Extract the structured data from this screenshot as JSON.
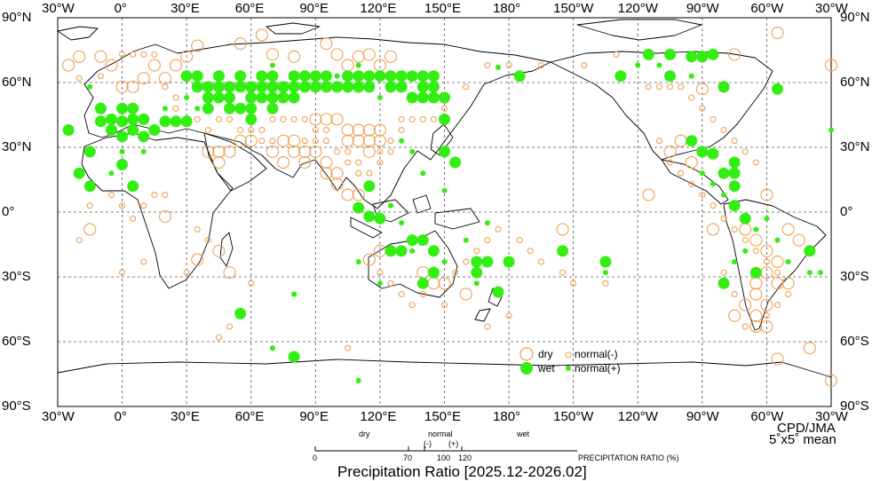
{
  "lon_labels": [
    "30°W",
    "0°",
    "30°E",
    "60°E",
    "90°E",
    "120°E",
    "150°E",
    "180°",
    "150°W",
    "120°W",
    "90°W",
    "60°W",
    "30°W"
  ],
  "lat_labels": [
    "90°N",
    "60°N",
    "30°N",
    "0°",
    "30°S",
    "60°S",
    "90°S"
  ],
  "credit": "CPD/JMA",
  "resolution": "5˚x5˚ mean",
  "legend": {
    "dry": "dry",
    "wet": "wet",
    "normal_minus": "normal(-)",
    "normal_plus": "normal(+)"
  },
  "scale": {
    "dry": "dry",
    "normal": "normal",
    "minus": "(-)",
    "plus": "(+)",
    "wet": "wet",
    "ticks": [
      "0",
      "70",
      "100",
      "120"
    ],
    "label": "PRECIPITATION RATIO  (%)"
  },
  "title": "Precipitation Ratio [2025.12-2026.02]",
  "colors": {
    "wet": "#33ee11",
    "dry": "#f0a050",
    "land": "#000000",
    "grid": "#555555"
  },
  "map_data": {
    "wet": [
      [
        -25,
        38
      ],
      [
        -20,
        18
      ],
      [
        -15,
        12
      ],
      [
        -15,
        28
      ],
      [
        -10,
        42
      ],
      [
        -10,
        48
      ],
      [
        -5,
        38
      ],
      [
        -5,
        43
      ],
      [
        0,
        22
      ],
      [
        0,
        35
      ],
      [
        0,
        42
      ],
      [
        0,
        48
      ],
      [
        5,
        12
      ],
      [
        5,
        38
      ],
      [
        5,
        43
      ],
      [
        5,
        48
      ],
      [
        10,
        43
      ],
      [
        10,
        35
      ],
      [
        15,
        38
      ],
      [
        20,
        42
      ],
      [
        25,
        42
      ],
      [
        30,
        42
      ],
      [
        30,
        63
      ],
      [
        35,
        63
      ],
      [
        35,
        58
      ],
      [
        40,
        58
      ],
      [
        40,
        53
      ],
      [
        40,
        48
      ],
      [
        45,
        63
      ],
      [
        45,
        58
      ],
      [
        45,
        53
      ],
      [
        50,
        58
      ],
      [
        50,
        53
      ],
      [
        50,
        48
      ],
      [
        55,
        63
      ],
      [
        55,
        58
      ],
      [
        55,
        48
      ],
      [
        60,
        58
      ],
      [
        60,
        53
      ],
      [
        60,
        48
      ],
      [
        60,
        43
      ],
      [
        65,
        63
      ],
      [
        65,
        58
      ],
      [
        65,
        53
      ],
      [
        70,
        63
      ],
      [
        70,
        58
      ],
      [
        70,
        53
      ],
      [
        70,
        48
      ],
      [
        75,
        58
      ],
      [
        75,
        53
      ],
      [
        80,
        63
      ],
      [
        80,
        58
      ],
      [
        80,
        53
      ],
      [
        85,
        63
      ],
      [
        85,
        58
      ],
      [
        90,
        63
      ],
      [
        90,
        58
      ],
      [
        95,
        63
      ],
      [
        95,
        58
      ],
      [
        100,
        58
      ],
      [
        105,
        63
      ],
      [
        105,
        58
      ],
      [
        110,
        63
      ],
      [
        110,
        58
      ],
      [
        115,
        63
      ],
      [
        115,
        58
      ],
      [
        120,
        63
      ],
      [
        125,
        63
      ],
      [
        125,
        58
      ],
      [
        130,
        63
      ],
      [
        130,
        58
      ],
      [
        135,
        63
      ],
      [
        135,
        53
      ],
      [
        140,
        63
      ],
      [
        140,
        58
      ],
      [
        140,
        53
      ],
      [
        145,
        63
      ],
      [
        145,
        58
      ],
      [
        145,
        53
      ],
      [
        150,
        53
      ],
      [
        150,
        43
      ],
      [
        150,
        28
      ],
      [
        155,
        23
      ],
      [
        115,
        12
      ],
      [
        110,
        2
      ],
      [
        115,
        -2
      ],
      [
        120,
        -3
      ],
      [
        125,
        -18
      ],
      [
        130,
        -18
      ],
      [
        135,
        -13
      ],
      [
        140,
        -13
      ],
      [
        145,
        -18
      ],
      [
        145,
        -28
      ],
      [
        140,
        -33
      ],
      [
        165,
        -28
      ],
      [
        165,
        -23
      ],
      [
        170,
        -23
      ],
      [
        180,
        -23
      ],
      [
        185,
        63
      ],
      [
        205,
        -18
      ],
      [
        225,
        -23
      ],
      [
        232,
        63
      ],
      [
        245,
        73
      ],
      [
        255,
        73
      ],
      [
        255,
        63
      ],
      [
        265,
        72
      ],
      [
        270,
        72
      ],
      [
        275,
        73
      ],
      [
        280,
        58
      ],
      [
        280,
        -33
      ],
      [
        285,
        12
      ],
      [
        285,
        23
      ],
      [
        265,
        33
      ],
      [
        270,
        28
      ],
      [
        275,
        27
      ],
      [
        280,
        18
      ],
      [
        285,
        18
      ],
      [
        285,
        3
      ],
      [
        290,
        -3
      ],
      [
        295,
        -28
      ],
      [
        305,
        57
      ],
      [
        320,
        -18
      ],
      [
        55,
        -47
      ],
      [
        80,
        -67
      ],
      [
        175,
        -37
      ]
    ],
    "dry": [
      [
        -25,
        68
      ],
      [
        -20,
        72
      ],
      [
        -10,
        72
      ],
      [
        -5,
        68
      ],
      [
        0,
        58
      ],
      [
        5,
        58
      ],
      [
        10,
        62
      ],
      [
        15,
        68
      ],
      [
        20,
        62
      ],
      [
        25,
        68
      ],
      [
        30,
        72
      ],
      [
        35,
        77
      ],
      [
        55,
        78
      ],
      [
        65,
        82
      ],
      [
        70,
        73
      ],
      [
        80,
        72
      ],
      [
        95,
        78
      ],
      [
        100,
        73
      ],
      [
        105,
        68
      ],
      [
        110,
        72
      ],
      [
        115,
        73
      ],
      [
        120,
        68
      ],
      [
        125,
        72
      ],
      [
        90,
        43
      ],
      [
        95,
        43
      ],
      [
        100,
        43
      ],
      [
        105,
        38
      ],
      [
        105,
        33
      ],
      [
        110,
        38
      ],
      [
        110,
        33
      ],
      [
        115,
        38
      ],
      [
        115,
        33
      ],
      [
        115,
        28
      ],
      [
        120,
        38
      ],
      [
        120,
        33
      ],
      [
        80,
        33
      ],
      [
        75,
        33
      ],
      [
        70,
        28
      ],
      [
        75,
        23
      ],
      [
        80,
        28
      ],
      [
        85,
        28
      ],
      [
        85,
        23
      ],
      [
        90,
        28
      ],
      [
        95,
        23
      ],
      [
        100,
        18
      ],
      [
        95,
        18
      ],
      [
        100,
        13
      ],
      [
        105,
        8
      ],
      [
        110,
        8
      ],
      [
        40,
        28
      ],
      [
        45,
        23
      ],
      [
        45,
        28
      ],
      [
        50,
        28
      ],
      [
        55,
        33
      ],
      [
        60,
        33
      ],
      [
        20,
        -2
      ],
      [
        35,
        -22
      ],
      [
        45,
        -18
      ],
      [
        50,
        -28
      ],
      [
        115,
        -22
      ],
      [
        120,
        -18
      ],
      [
        140,
        -28
      ],
      [
        145,
        -33
      ],
      [
        150,
        -33
      ],
      [
        160,
        -38
      ],
      [
        -15,
        -8
      ],
      [
        205,
        -8
      ],
      [
        245,
        8
      ],
      [
        255,
        28
      ],
      [
        260,
        33
      ],
      [
        265,
        23
      ],
      [
        275,
        -8
      ],
      [
        290,
        -8
      ],
      [
        295,
        -13
      ],
      [
        300,
        -18
      ],
      [
        300,
        -28
      ],
      [
        305,
        -23
      ],
      [
        305,
        -33
      ],
      [
        310,
        -33
      ],
      [
        300,
        -43
      ],
      [
        295,
        -48
      ],
      [
        295,
        -53
      ],
      [
        300,
        -53
      ],
      [
        295,
        -38
      ],
      [
        290,
        -43
      ],
      [
        295,
        -33
      ],
      [
        285,
        -48
      ],
      [
        300,
        8
      ],
      [
        310,
        -8
      ],
      [
        315,
        -13
      ],
      [
        305,
        -68
      ],
      [
        320,
        -63
      ],
      [
        330,
        -78
      ],
      [
        330,
        68
      ],
      [
        270,
        57
      ],
      [
        285,
        73
      ],
      [
        305,
        83
      ]
    ],
    "norm_plus": [
      [
        -15,
        58
      ],
      [
        -10,
        48
      ],
      [
        -5,
        18
      ],
      [
        0,
        28
      ],
      [
        10,
        28
      ],
      [
        20,
        48
      ],
      [
        30,
        53
      ],
      [
        35,
        48
      ],
      [
        70,
        68
      ],
      [
        100,
        63
      ],
      [
        110,
        68
      ],
      [
        120,
        53
      ],
      [
        130,
        33
      ],
      [
        135,
        28
      ],
      [
        140,
        18
      ],
      [
        150,
        10
      ],
      [
        125,
        3
      ],
      [
        130,
        -5
      ],
      [
        110,
        -23
      ],
      [
        120,
        -33
      ],
      [
        135,
        -18
      ],
      [
        150,
        -23
      ],
      [
        165,
        -33
      ],
      [
        160,
        -13
      ],
      [
        170,
        -5
      ],
      [
        175,
        67
      ],
      [
        225,
        -28
      ],
      [
        240,
        68
      ],
      [
        250,
        68
      ],
      [
        265,
        63
      ],
      [
        270,
        18
      ],
      [
        275,
        13
      ],
      [
        280,
        8
      ],
      [
        285,
        -23
      ],
      [
        290,
        -18
      ],
      [
        295,
        -8
      ],
      [
        300,
        -3
      ],
      [
        305,
        -13
      ],
      [
        310,
        -23
      ],
      [
        320,
        -28
      ],
      [
        325,
        -28
      ],
      [
        330,
        38
      ],
      [
        80,
        -38
      ],
      [
        110,
        -78
      ],
      [
        70,
        -63
      ]
    ],
    "norm_minus": [
      [
        -20,
        62
      ],
      [
        -10,
        63
      ],
      [
        0,
        73
      ],
      [
        5,
        73
      ],
      [
        10,
        73
      ],
      [
        15,
        73
      ],
      [
        20,
        58
      ],
      [
        25,
        53
      ],
      [
        25,
        48
      ],
      [
        30,
        43
      ],
      [
        35,
        43
      ],
      [
        40,
        38
      ],
      [
        45,
        43
      ],
      [
        50,
        43
      ],
      [
        55,
        38
      ],
      [
        60,
        38
      ],
      [
        65,
        38
      ],
      [
        65,
        33
      ],
      [
        70,
        33
      ],
      [
        70,
        43
      ],
      [
        75,
        43
      ],
      [
        80,
        43
      ],
      [
        85,
        43
      ],
      [
        85,
        33
      ],
      [
        90,
        33
      ],
      [
        90,
        38
      ],
      [
        95,
        33
      ],
      [
        95,
        38
      ],
      [
        100,
        28
      ],
      [
        105,
        28
      ],
      [
        110,
        23
      ],
      [
        115,
        18
      ],
      [
        110,
        18
      ],
      [
        105,
        23
      ],
      [
        120,
        28
      ],
      [
        120,
        23
      ],
      [
        125,
        28
      ],
      [
        125,
        33
      ],
      [
        130,
        38
      ],
      [
        130,
        43
      ],
      [
        135,
        43
      ],
      [
        140,
        43
      ],
      [
        145,
        43
      ],
      [
        150,
        48
      ],
      [
        160,
        58
      ],
      [
        170,
        68
      ],
      [
        180,
        68
      ],
      [
        195,
        68
      ],
      [
        215,
        68
      ],
      [
        230,
        73
      ],
      [
        245,
        58
      ],
      [
        250,
        58
      ],
      [
        255,
        58
      ],
      [
        260,
        58
      ],
      [
        265,
        53
      ],
      [
        270,
        48
      ],
      [
        275,
        43
      ],
      [
        280,
        38
      ],
      [
        285,
        33
      ],
      [
        290,
        28
      ],
      [
        295,
        23
      ],
      [
        250,
        33
      ],
      [
        255,
        23
      ],
      [
        260,
        18
      ],
      [
        265,
        13
      ],
      [
        270,
        8
      ],
      [
        275,
        3
      ],
      [
        280,
        -3
      ],
      [
        285,
        -8
      ],
      [
        290,
        -13
      ],
      [
        295,
        -18
      ],
      [
        300,
        -23
      ],
      [
        305,
        -28
      ],
      [
        310,
        -38
      ],
      [
        305,
        -43
      ],
      [
        300,
        -48
      ],
      [
        290,
        -53
      ],
      [
        285,
        -38
      ],
      [
        280,
        -28
      ],
      [
        120,
        -28
      ],
      [
        125,
        -33
      ],
      [
        130,
        -38
      ],
      [
        135,
        -43
      ],
      [
        140,
        -38
      ],
      [
        150,
        -43
      ],
      [
        155,
        -28
      ],
      [
        160,
        -23
      ],
      [
        165,
        -18
      ],
      [
        170,
        -13
      ],
      [
        175,
        -8
      ],
      [
        185,
        -13
      ],
      [
        190,
        -18
      ],
      [
        195,
        -23
      ],
      [
        205,
        -28
      ],
      [
        210,
        -33
      ],
      [
        225,
        -33
      ],
      [
        50,
        -53
      ],
      [
        45,
        -58
      ],
      [
        60,
        -33
      ],
      [
        40,
        -13
      ],
      [
        35,
        -8
      ],
      [
        20,
        8
      ],
      [
        15,
        8
      ],
      [
        10,
        3
      ],
      [
        5,
        -3
      ],
      [
        0,
        3
      ],
      [
        -5,
        8
      ],
      [
        -15,
        3
      ],
      [
        -20,
        -13
      ],
      [
        0,
        -28
      ],
      [
        10,
        -23
      ],
      [
        30,
        -28
      ],
      [
        105,
        -63
      ],
      [
        180,
        -48
      ],
      [
        170,
        -53
      ]
    ]
  }
}
